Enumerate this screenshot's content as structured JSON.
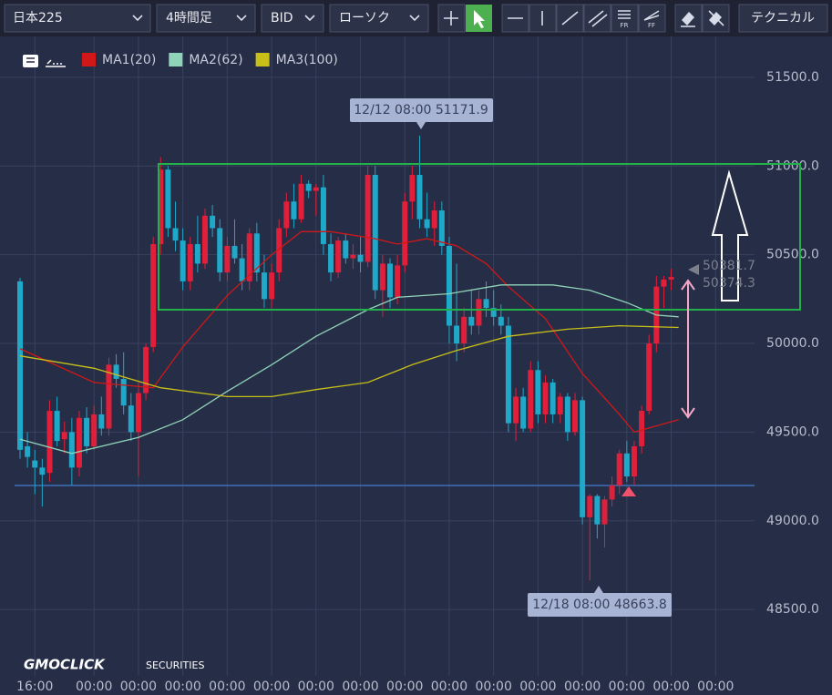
{
  "toolbar": {
    "symbol": "日本225",
    "timeframe": "4時間足",
    "price": "BID",
    "chart_style": "ローソク",
    "technical": "テクニカル",
    "icon_fr": "FR",
    "icon_ff": "FF"
  },
  "logo": {
    "brand": "GMOCLICK",
    "suffix": "SECURITIES"
  },
  "chart_data": {
    "type": "candlestick",
    "categories": [
      null,
      null,
      "16:00",
      null,
      null,
      null,
      null,
      null,
      null,
      null,
      "00:00",
      null,
      null,
      null,
      null,
      null,
      "00:00",
      null,
      null,
      null,
      null,
      null,
      "00:00",
      null,
      null,
      null,
      null,
      null,
      "00:00",
      null,
      null,
      null,
      null,
      null,
      "00:00",
      null,
      null,
      null,
      null,
      null,
      "00:00",
      null,
      null,
      null,
      null,
      null,
      "00:00",
      null,
      null,
      null,
      null,
      null,
      "00:00",
      null,
      null,
      null,
      null,
      null,
      "00:00",
      null,
      null,
      null,
      null,
      null,
      "00:00",
      null,
      null,
      null,
      null,
      null,
      "00:00",
      null,
      null,
      null,
      null,
      null,
      "00:00",
      null,
      null,
      null,
      null,
      null,
      "00:00",
      null,
      null,
      null,
      null,
      null,
      "00:00",
      null,
      null,
      null,
      null,
      null,
      "00:00"
    ],
    "open": [
      50350,
      49420,
      49340,
      49300,
      49270,
      49620,
      49460,
      49500,
      49300,
      49580,
      49420,
      49600,
      49520,
      49880,
      49800,
      49650,
      49500,
      49720,
      49980,
      50560,
      50980,
      50650,
      50580,
      50350,
      50560,
      50450,
      50720,
      50650,
      50400,
      50550,
      50480,
      50350,
      50620,
      50400,
      50250,
      50400,
      50650,
      50800,
      50700,
      50900,
      50860,
      50880,
      50560,
      50400,
      50580,
      50480,
      50500,
      50460,
      50950,
      50300,
      50450,
      50260,
      50440,
      50800,
      50950,
      50700,
      50650,
      50750,
      50550,
      50100,
      50000,
      50150,
      50100,
      50250,
      50200,
      50150,
      50100,
      49550,
      49700,
      49520,
      49850,
      49600,
      49780,
      49600,
      49700,
      49500,
      49680,
      49020,
      49140,
      48980,
      49120,
      49200,
      49380,
      49250,
      49420,
      49620,
      50000,
      50320,
      50360,
      null,
      null,
      null,
      null,
      null,
      null
    ],
    "high": [
      50370,
      49500,
      49400,
      49350,
      49680,
      49700,
      49560,
      49580,
      49620,
      49640,
      49650,
      49700,
      49920,
      49940,
      49950,
      49720,
      49780,
      50000,
      50600,
      51050,
      51000,
      50800,
      50650,
      50600,
      50720,
      50760,
      50780,
      50700,
      50600,
      50700,
      50560,
      50650,
      50680,
      50500,
      50450,
      50700,
      50850,
      50900,
      50950,
      50920,
      50900,
      50950,
      50620,
      50600,
      50620,
      50560,
      50600,
      51000,
      51000,
      50500,
      50480,
      50500,
      50850,
      51000,
      51171.9,
      50850,
      50800,
      50800,
      50600,
      50450,
      50200,
      50300,
      50300,
      50350,
      50300,
      50220,
      50150,
      49750,
      49750,
      49900,
      49900,
      49820,
      49800,
      49720,
      49720,
      49720,
      49700,
      49150,
      49150,
      49140,
      49250,
      49400,
      49450,
      49450,
      49650,
      50050,
      50380,
      50380,
      50420,
      null,
      null,
      null,
      null,
      null,
      null
    ],
    "low": [
      49350,
      49300,
      49150,
      49080,
      49220,
      49420,
      49380,
      49200,
      49250,
      49380,
      49400,
      49480,
      49480,
      49750,
      49600,
      49450,
      49250,
      49680,
      49950,
      50500,
      50600,
      50520,
      50300,
      50300,
      50400,
      50420,
      50600,
      50350,
      50350,
      50450,
      50300,
      50300,
      50350,
      50200,
      50200,
      50350,
      50600,
      50650,
      50680,
      50820,
      50720,
      50500,
      50350,
      50370,
      50450,
      50420,
      50400,
      50430,
      50250,
      50150,
      50200,
      50220,
      50400,
      50700,
      50650,
      50600,
      50550,
      50500,
      50000,
      49900,
      49950,
      50050,
      50050,
      50150,
      50100,
      50050,
      49500,
      49450,
      49500,
      49500,
      49550,
      49550,
      49550,
      49550,
      49450,
      49480,
      48980,
      48663.8,
      48900,
      48850,
      49080,
      49150,
      49220,
      49200,
      49380,
      49600,
      49950,
      50200,
      50300,
      null,
      null,
      null,
      null,
      null,
      null
    ],
    "close": [
      49400,
      49360,
      49300,
      49260,
      49620,
      49450,
      49500,
      49300,
      49580,
      49420,
      49600,
      49520,
      49880,
      49800,
      49650,
      49500,
      49720,
      49980,
      50560,
      50980,
      50650,
      50580,
      50350,
      50560,
      50450,
      50720,
      50650,
      50400,
      50550,
      50480,
      50350,
      50620,
      50400,
      50250,
      50400,
      50650,
      50800,
      50700,
      50900,
      50860,
      50880,
      50560,
      50400,
      50580,
      50480,
      50500,
      50460,
      50950,
      50300,
      50450,
      50260,
      50440,
      50800,
      50950,
      50700,
      50650,
      50750,
      50550,
      50100,
      50000,
      50150,
      50100,
      50250,
      50200,
      50150,
      50100,
      49550,
      49700,
      49520,
      49850,
      49600,
      49780,
      49600,
      49700,
      49500,
      49680,
      49020,
      49140,
      48980,
      49120,
      49200,
      49380,
      49250,
      49420,
      49620,
      50000,
      50320,
      50360,
      50374.3,
      null,
      null,
      null,
      null,
      null,
      null
    ],
    "up_color": "#e0203a",
    "down_color": "#1fa8c8",
    "series": [
      {
        "name": "MA1(20)",
        "color": "#d01818",
        "x": [
          0,
          10,
          18,
          22,
          28,
          34,
          38,
          42,
          48,
          51,
          55,
          59,
          63,
          66,
          71,
          76,
          81,
          83,
          89
        ],
        "values": [
          49970,
          49780,
          49750,
          49980,
          50270,
          50500,
          50630,
          50630,
          50590,
          50560,
          50590,
          50550,
          50450,
          50320,
          50140,
          49830,
          49600,
          49500,
          49570
        ]
      },
      {
        "name": "MA2(62)",
        "color": "#8fd3b8",
        "x": [
          0,
          7,
          16,
          22,
          28,
          34,
          40,
          47,
          51,
          58,
          65,
          72,
          77,
          82,
          86,
          89
        ],
        "values": [
          49460,
          49380,
          49470,
          49570,
          49730,
          49880,
          50040,
          50190,
          50260,
          50280,
          50330,
          50330,
          50300,
          50230,
          50160,
          50150
        ]
      },
      {
        "name": "MA3(100)",
        "color": "#c8c018",
        "x": [
          0,
          10,
          19,
          28,
          34,
          40,
          47,
          53,
          59,
          66,
          74,
          81,
          89
        ],
        "values": [
          49930,
          49860,
          49750,
          49700,
          49700,
          49740,
          49780,
          49880,
          49960,
          50040,
          50080,
          50100,
          50090
        ]
      }
    ],
    "ylim": [
      48136,
      51741
    ],
    "yticks": [
      {
        "value": 48500,
        "label": "48500.0"
      },
      {
        "value": 49000,
        "label": "49000.0"
      },
      {
        "value": 49500,
        "label": "49500.0"
      },
      {
        "value": 50000,
        "label": "50000.0"
      },
      {
        "value": 50500,
        "label": "50500.0"
      },
      {
        "value": 51000,
        "label": "51000.0"
      },
      {
        "value": 51500,
        "label": "51500.0"
      }
    ],
    "grid": true,
    "annotations": [
      {
        "text": "12/12 08:00 51171.9"
      },
      {
        "text": "12/18 08:00 48663.8"
      }
    ],
    "last_price_labels": [
      "50381.7",
      "50374.3"
    ]
  }
}
